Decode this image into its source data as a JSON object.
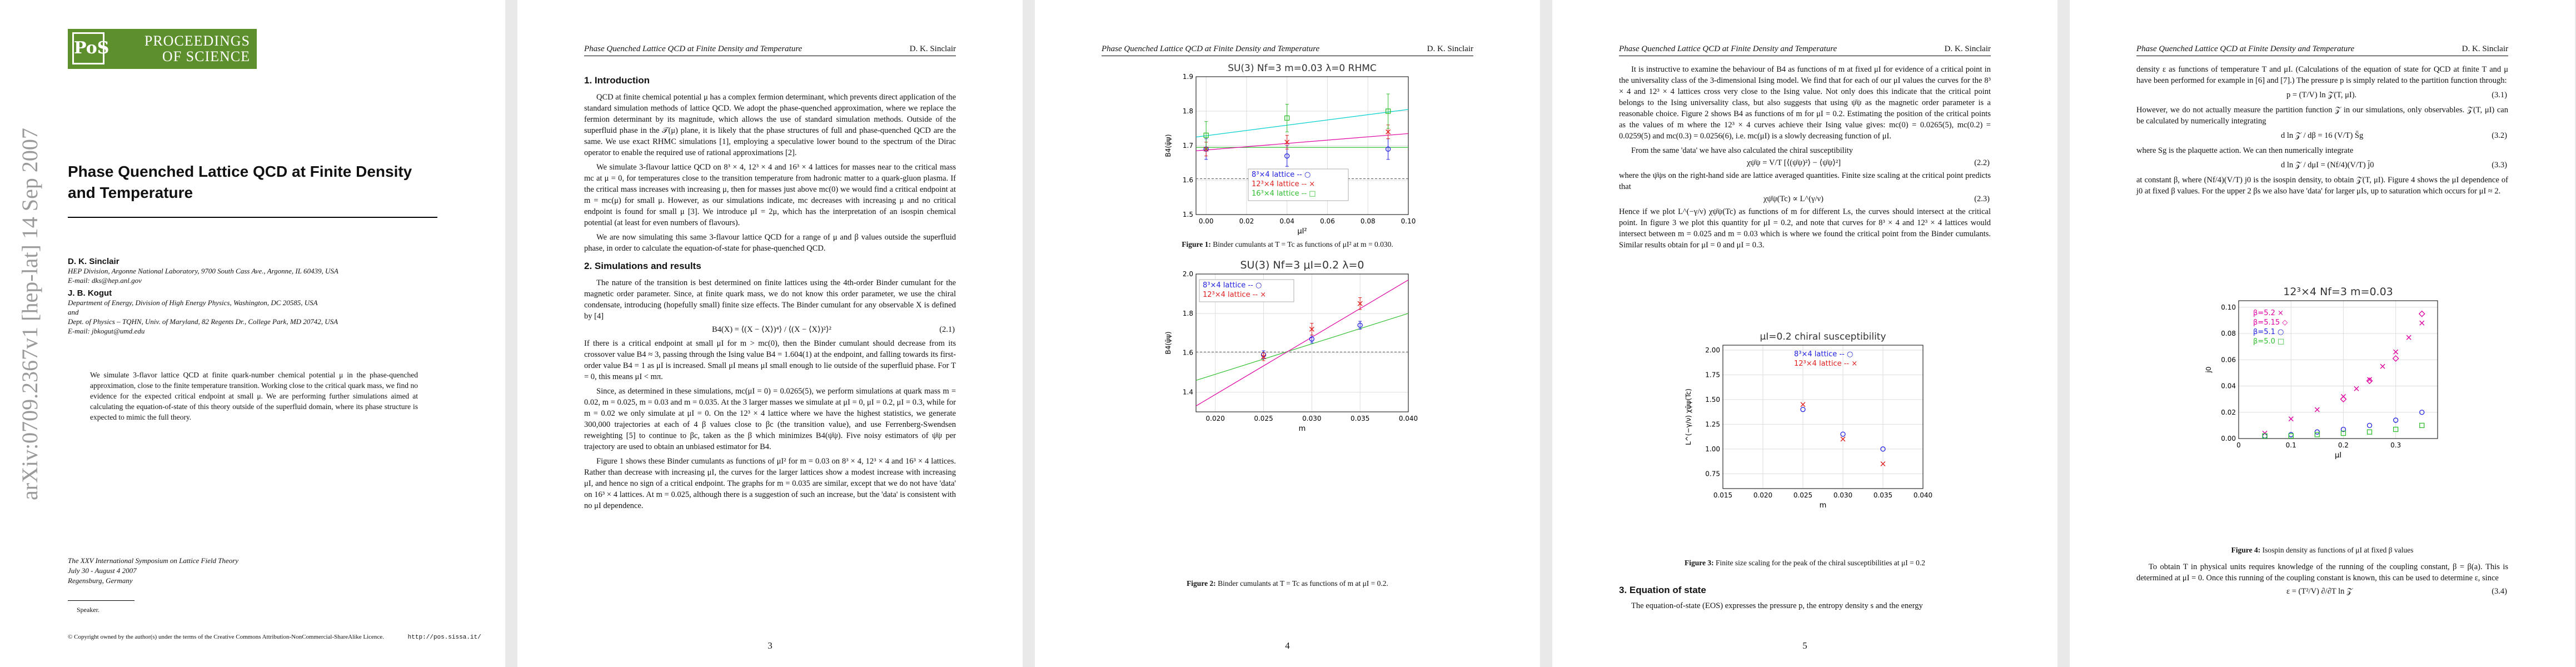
{
  "colors": {
    "bg": "#e9e9e9",
    "logo_green": "#5d8f2c",
    "cyan": "#00d0d0",
    "magenta": "#e000a0",
    "green": "#30c030",
    "blue": "#2020e0",
    "red": "#e02020"
  },
  "page1": {
    "logo_ps": "PoS",
    "logo_line1": "PROCEEDINGS",
    "logo_line2": "OF SCIENCE",
    "arxiv": "arXiv:0709.2367v1 [hep-lat] 14 Sep 2007",
    "title": "Phase Quenched Lattice QCD at Finite Density and Temperature",
    "author1": "D. K. Sinclair",
    "affil1": "HEP Division, Argonne National Laboratory, 9700 South Cass Ave., Argonne, IL 60439, USA",
    "email1": "E-mail: dks@hep.anl.gov",
    "author2": "J. B. Kogut",
    "affil2a": "Department of Energy, Division of High Energy Physics, Washington, DC 20585, USA",
    "affil2b": "and",
    "affil2c": "Dept. of Physics – TQHN, Univ. of Maryland, 82 Regents Dr., College Park, MD 20742, USA",
    "email2": "E-mail: jbkogut@umd.edu",
    "abstract": "We simulate 3-flavor lattice QCD at finite quark-number chemical potential μ in the phase-quenched approximation, close to the finite temperature transition. Working close to the critical quark mass, we find no evidence for the expected critical endpoint at small μ. We are performing further simulations aimed at calculating the equation-of-state of this theory outside of the superfluid domain, where its phase structure is expected to mimic the full theory.",
    "conf1": "The XXV International Symposium on Lattice Field Theory",
    "conf2": "July 30 - August 4 2007",
    "conf3": "Regensburg, Germany",
    "speaker": "Speaker.",
    "footnote": "© Copyright owned by the author(s) under the terms of the Creative Commons Attribution-NonCommercial-ShareAlike Licence.",
    "url": "http://pos.sissa.it/"
  },
  "running_head": {
    "left": "Phase Quenched Lattice QCD at Finite Density and Temperature",
    "right": "D. K. Sinclair"
  },
  "page2": {
    "sec1": "1. Introduction",
    "p1": "QCD at finite chemical potential μ has a complex fermion determinant, which prevents direct application of the standard simulation methods of lattice QCD. We adopt the phase-quenched approximation, where we replace the fermion determinant by its magnitude, which allows the use of standard simulation methods. Outside of the superfluid phase in the 𝒯(μ) plane, it is likely that the phase structures of full and phase-quenched QCD are the same. We use exact RHMC simulations [1], employing a speculative lower bound to the spectrum of the Dirac operator to enable the required use of rational approximations [2].",
    "p2": "We simulate 3-flavour lattice QCD on 8³ × 4, 12³ × 4 and 16³ × 4 lattices for masses near to the critical mass mc at μ = 0, for temperatures close to the transition temperature from hadronic matter to a quark-gluon plasma. If the critical mass increases with increasing μ, then for masses just above mc(0) we would find a critical endpoint at m = mc(μ) for small μ. However, as our simulations indicate, mc decreases with increasing μ and no critical endpoint is found for small μ [3]. We introduce μI = 2μ, which has the interpretation of an isospin chemical potential (at least for even numbers of flavours).",
    "p3": "We are now simulating this same 3-flavour lattice QCD for a range of μ and β values outside the superfluid phase, in order to calculate the equation-of-state for phase-quenched QCD.",
    "sec2": "2. Simulations and results",
    "p4": "The nature of the transition is best determined on finite lattices using the 4th-order Binder cumulant for the magnetic order parameter. Since, at finite quark mass, we do not know this order parameter, we use the chiral condensate, introducing (hopefully small) finite size effects. The Binder cumulant for any observable X is defined by [4]",
    "eq1": "B4(X) = ⟨(X − ⟨X⟩)⁴⟩ / ⟨(X − ⟨X⟩)²⟩²",
    "eq1n": "(2.1)",
    "p5": "If there is a critical endpoint at small μI for m > mc(0), then the Binder cumulant should decrease from its crossover value B4 ≈ 3, passing through the Ising value B4 = 1.604(1) at the endpoint, and falling towards its first-order value B4 = 1 as μI is increased. Small μI means μI small enough to lie outside of the superfluid phase. For T = 0, this means μI < mπ.",
    "p6": "Since, as determined in these simulations, mc(μI = 0) = 0.0265(5), we perform simulations at quark mass m = 0.02, m = 0.025, m = 0.03 and m = 0.035. At the 3 larger masses we simulate at μI = 0, μI = 0.2, μI = 0.3, while for m = 0.02 we only simulate at μI = 0. On the 12³ × 4 lattice where we have the highest statistics, we generate 300,000 trajectories at each of 4 β values close to βc (the transition value), and use Ferrenberg-Swendsen reweighting [5] to continue to βc, taken as the β which minimizes B4(ψ̄ψ). Five noisy estimators of ψ̄ψ per trajectory are used to obtain an unbiased estimator for B4.",
    "p7": "Figure 1 shows these Binder cumulants as functions of μI² for m = 0.03 on 8³ × 4, 12³ × 4 and 16³ × 4 lattices. Rather than decrease with increasing μI, the curves for the larger lattices show a modest increase with increasing μI, and hence no sign of a critical endpoint. The graphs for m = 0.035 are similar, except that we do not have 'data' on 16³ × 4 lattices. At m = 0.025, although there is a suggestion of such an increase, but the 'data' is consistent with no μI dependence."
  },
  "page3": {
    "fig1_caption_label": "Figure 1:",
    "fig1_caption": "Binder cumulants at T = Tc as functions of μI² at m = 0.030.",
    "fig2_caption_label": "Figure 2:",
    "fig2_caption": "Binder cumulants at T = Tc as functions of m at μI = 0.2."
  },
  "page4": {
    "p1": "It is instructive to examine the behaviour of B4 as functions of m at fixed μI for evidence of a critical point in the universality class of the 3-dimensional Ising model. We find that for each of our μI values the curves for the 8³ × 4 and 12³ × 4 lattices cross very close to the Ising value. Not only does this indicate that the critical point belongs to the Ising universality class, but also suggests that using ψ̄ψ as the magnetic order parameter is a reasonable choice. Figure 2 shows B4 as functions of m for μI = 0.2. Estimating the position of the critical points as the values of m where the 12³ × 4 curves achieve their Ising value gives: mc(0) = 0.0265(5), mc(0.2) = 0.0259(5) and mc(0.3) = 0.0256(6), i.e. mc(μI) is a slowly decreasing function of μI.",
    "p2": "From the same 'data' we have also calculated the chiral susceptibility",
    "eq1": "χψ̄ψ = V/T [⟨(ψ̄ψ)²⟩ − ⟨ψ̄ψ⟩²]",
    "eq1n": "(2.2)",
    "p3": "where the ψ̄ψs on the right-hand side are lattice averaged quantities. Finite size scaling at the critical point predicts that",
    "eq2": "χψ̄ψ(Tc) ∝ L^(γ/ν)",
    "eq2n": "(2.3)",
    "p4": "Hence if we plot L^(−γ/ν) χψ̄ψ(Tc) as functions of m for different Ls, the curves should intersect at the critical point. In figure 3 we plot this quantity for μI = 0.2, and note that curves for 8³ × 4 and 12³ × 4 lattices would intersect between m = 0.025 and m = 0.03 which is where we found the critical point from the Binder cumulants. Similar results obtain for μI = 0 and μI = 0.3.",
    "fig3_caption_label": "Figure 3:",
    "fig3_caption": "Finite size scaling for the peak of the chiral susceptibilities at μI = 0.2",
    "sec3": "3. Equation of state",
    "p5": "The equation-of-state (EOS) expresses the pressure p, the entropy density s and the energy"
  },
  "page5": {
    "p1": "density ε as functions of temperature T and μI. (Calculations of the equation of state for QCD at finite T and μ have been performed for example in [6] and [7].) The pressure p is simply related to the partition function through:",
    "eq1": "p = (T/V) ln 𝒵(T, μI).",
    "eq1n": "(3.1)",
    "p2": "However, we do not actually measure the partition function 𝒵 in our simulations, only observables. 𝒵(T, μI) can be calculated by numerically integrating",
    "eq2": "d ln 𝒵 / dβ = 16 (V/T) S̄g",
    "eq2n": "(3.2)",
    "p3": "where Sg is the plaquette action. We can then numerically integrate",
    "eq3": "d ln 𝒵 / dμI = (Nf/4)(V/T) j̄0",
    "eq3n": "(3.3)",
    "p4": "at constant β, where (Nf/4)(V/T) j0 is the isospin density, to obtain 𝒵(T, μI). Figure 4 shows the μI dependence of j0 at fixed β values. For the upper 2 βs we also have 'data' for larger μIs, up to saturation which occurs for μI ≈ 2.",
    "fig4_caption_label": "Figure 4:",
    "fig4_caption": "Isospin density as functions of μI at fixed β values",
    "p5": "To obtain T in physical units requires knowledge of the running of the coupling constant, β = β(a). This is determined at μI = 0. Once this running of the coupling constant is known, this can be used to determine ε, since",
    "eq4": "ε = (T²/V) ∂/∂T ln 𝒵",
    "eq4n": "(3.4)"
  },
  "page_numbers": [
    "3",
    "4",
    "5"
  ],
  "chart_data": [
    {
      "type": "scatter",
      "title": "SU(3)  Nf=3  m=0.03  λ=0  RHMC",
      "xlabel": "μI²",
      "ylabel": "B4(ψ̄ψ)",
      "xlim": [
        -0.005,
        0.1
      ],
      "ylim": [
        1.5,
        1.9
      ],
      "xticks": [
        "0.00",
        "0.02",
        "0.04",
        "0.06",
        "0.08",
        "0.10"
      ],
      "yticks": [
        "1.5",
        "1.6",
        "1.7",
        "1.8",
        "1.9"
      ],
      "reference_line": 1.604,
      "legend": [
        "8³×4 lattice -- ○",
        "12³×4 lattice -- ×",
        "16³×4 lattice -- □"
      ],
      "series": [
        {
          "name": "8³×4 lattice",
          "x": [
            0,
            0.04,
            0.09
          ],
          "y": [
            1.69,
            1.67,
            1.69
          ],
          "err": [
            0.03,
            0.03,
            0.03
          ]
        },
        {
          "name": "12³×4 lattice",
          "x": [
            0,
            0.04,
            0.09
          ],
          "y": [
            1.69,
            1.71,
            1.74
          ],
          "err": [
            0.02,
            0.02,
            0.02
          ]
        },
        {
          "name": "16³×4 lattice",
          "x": [
            0,
            0.04,
            0.09
          ],
          "y": [
            1.73,
            1.78,
            1.8
          ],
          "err": [
            0.04,
            0.04,
            0.05
          ]
        }
      ],
      "fits": [
        {
          "x": [
            -0.005,
            0.1
          ],
          "y": [
            1.695,
            1.695
          ]
        },
        {
          "x": [
            -0.005,
            0.1
          ],
          "y": [
            1.685,
            1.735
          ]
        },
        {
          "x": [
            -0.005,
            0.1
          ],
          "y": [
            1.725,
            1.805
          ]
        }
      ]
    },
    {
      "type": "scatter",
      "title": "SU(3)  Nf=3  μI=0.2  λ=0",
      "xlabel": "m",
      "ylabel": "B4(ψ̄ψ)",
      "xlim": [
        0.018,
        0.04
      ],
      "ylim": [
        1.3,
        2.0
      ],
      "xticks": [
        "0.020",
        "0.025",
        "0.030",
        "0.035",
        "0.040"
      ],
      "yticks": [
        "1.4",
        "1.6",
        "1.8",
        "2.0"
      ],
      "reference_line": 1.604,
      "legend": [
        "8³×4 lattice -- ○",
        "12³×4 lattice -- ×"
      ],
      "series": [
        {
          "name": "8³×4 lattice",
          "x": [
            0.025,
            0.03,
            0.035
          ],
          "y": [
            1.59,
            1.67,
            1.74
          ],
          "err": [
            0.02,
            0.02,
            0.02
          ]
        },
        {
          "name": "12³×4 lattice",
          "x": [
            0.025,
            0.03,
            0.035
          ],
          "y": [
            1.58,
            1.72,
            1.85
          ],
          "err": [
            0.02,
            0.03,
            0.03
          ]
        }
      ],
      "fits": [
        {
          "x": [
            0.018,
            0.04
          ],
          "y": [
            1.46,
            1.8
          ]
        },
        {
          "x": [
            0.018,
            0.04
          ],
          "y": [
            1.33,
            1.97
          ]
        }
      ]
    },
    {
      "type": "scatter",
      "title": "μI=0.2 chiral susceptibility",
      "xlabel": "m",
      "ylabel": "L^(−γ/ν) χψ̄ψ(Tc)",
      "xlim": [
        0.015,
        0.04
      ],
      "ylim": [
        0.6,
        2.05
      ],
      "xticks": [
        "0.015",
        "0.020",
        "0.025",
        "0.030",
        "0.035",
        "0.040"
      ],
      "yticks": [
        "0.75",
        "1.00",
        "1.25",
        "1.50",
        "1.75",
        "2.00"
      ],
      "legend": [
        "8³×4 lattice -- ○",
        "12³×4 lattice -- ×"
      ],
      "series": [
        {
          "name": "8³×4 lattice",
          "x": [
            0.025,
            0.03,
            0.035
          ],
          "y": [
            1.4,
            1.15,
            1.0
          ]
        },
        {
          "name": "12³×4 lattice",
          "x": [
            0.025,
            0.03,
            0.035
          ],
          "y": [
            1.45,
            1.1,
            0.85
          ]
        }
      ]
    },
    {
      "type": "scatter",
      "title": "12³×4  Nf=3  m=0.03",
      "xlabel": "μI",
      "ylabel": "j0",
      "xlim": [
        0,
        0.38
      ],
      "ylim": [
        0,
        0.105
      ],
      "xticks": [
        "0",
        "0.1",
        "0.2",
        "0.3"
      ],
      "yticks": [
        "0.00",
        "0.02",
        "0.04",
        "0.06",
        "0.08",
        "0.10"
      ],
      "legend": [
        "β=5.2 ×",
        "β=5.15 ◇",
        "β=5.1 ○",
        "β=5.0 □"
      ],
      "series": [
        {
          "name": "β=5.2",
          "x": [
            0.05,
            0.1,
            0.15,
            0.2,
            0.225,
            0.25,
            0.275,
            0.3,
            0.325,
            0.35
          ],
          "y": [
            0.004,
            0.015,
            0.022,
            0.032,
            0.038,
            0.045,
            0.055,
            0.066,
            0.077,
            0.088
          ]
        },
        {
          "name": "β=5.15",
          "x": [
            0.2,
            0.25,
            0.3,
            0.35
          ],
          "y": [
            0.03,
            0.044,
            0.061,
            0.095
          ]
        },
        {
          "name": "β=5.1",
          "x": [
            0.05,
            0.1,
            0.15,
            0.2,
            0.25,
            0.3,
            0.35
          ],
          "y": [
            0.002,
            0.003,
            0.005,
            0.007,
            0.01,
            0.014,
            0.02
          ]
        },
        {
          "name": "β=5.0",
          "x": [
            0.05,
            0.1,
            0.15,
            0.2,
            0.25,
            0.3,
            0.35
          ],
          "y": [
            0.002,
            0.002,
            0.003,
            0.004,
            0.005,
            0.007,
            0.01
          ]
        }
      ]
    }
  ]
}
